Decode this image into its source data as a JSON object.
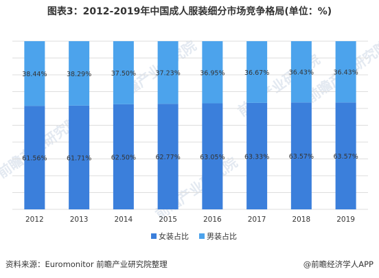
{
  "title": "图表3：2012-2019年中国成人服装细分市场竞争格局(单位：%)",
  "source": "资料来源：Euromonitor 前瞻产业研究院整理",
  "credit": "@前瞻经济学人APP",
  "watermark": "前瞻产业研究院",
  "colors": {
    "female": "#3B7FDB",
    "male": "#4CA3EC",
    "grid": "#DDDDDD",
    "watermark": "#E3E9F1"
  },
  "chart_data": {
    "type": "bar",
    "stacked": true,
    "categories": [
      "2012",
      "2013",
      "2014",
      "2015",
      "2016",
      "2017",
      "2018",
      "2019"
    ],
    "series": [
      {
        "name": "女装占比",
        "values": [
          61.56,
          61.71,
          62.5,
          62.77,
          63.05,
          63.33,
          63.57,
          63.57
        ],
        "labels": [
          "61.56%",
          "61.71%",
          "62.50%",
          "62.77%",
          "63.05%",
          "63.33%",
          "63.57%",
          "63.57%"
        ]
      },
      {
        "name": "男装占比",
        "values": [
          38.44,
          38.29,
          37.5,
          37.23,
          36.95,
          36.67,
          36.43,
          36.43
        ],
        "labels": [
          "38.44%",
          "38.29%",
          "37.50%",
          "37.23%",
          "36.95%",
          "36.67%",
          "36.43%",
          "36.43%"
        ]
      }
    ],
    "ylim": [
      0,
      100
    ],
    "grid": true,
    "legend": "bottom-center"
  }
}
